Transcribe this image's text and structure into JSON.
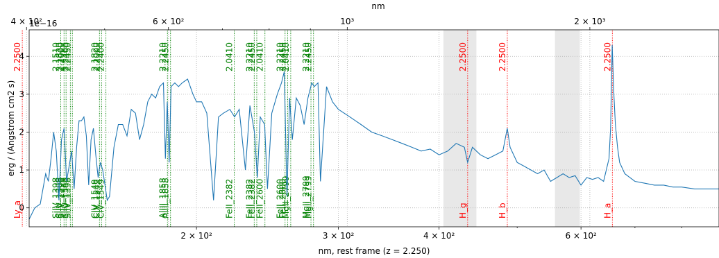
{
  "chart_data": {
    "type": "line",
    "colors": {
      "spectrum": "#1f77b4",
      "balmer": "#ff0000",
      "absorber": "#008000",
      "mask": "#e8e8e8"
    },
    "xlabel_bottom": "nm, rest frame (z = 2.250)",
    "xlabel_top": "nm",
    "ylabel": "erg / (Angstrom cm2 s)",
    "y_offset_label": "1e−16",
    "xscale": "log",
    "xlim_rest": [
      124,
      890
    ],
    "ylim": [
      -0.5,
      4.7
    ],
    "grid": true,
    "y_ticks": [
      {
        "v": 0,
        "label": "0"
      },
      {
        "v": 1,
        "label": "1"
      },
      {
        "v": 2,
        "label": "2"
      },
      {
        "v": 3,
        "label": "3"
      },
      {
        "v": 4,
        "label": "4"
      }
    ],
    "bottom_ticks": [
      {
        "v": 200,
        "label": "2 × 10²"
      },
      {
        "v": 300,
        "label": "3 × 10²"
      },
      {
        "v": 400,
        "label": "4 × 10²"
      },
      {
        "v": 600,
        "label": "6 × 10²"
      }
    ],
    "bottom_minor": [
      500,
      700,
      800
    ],
    "top_ticks": [
      {
        "v": 400,
        "label": "4 × 10²"
      },
      {
        "v": 600,
        "label": "6 × 10²"
      },
      {
        "v": 1000,
        "label": "10³"
      },
      {
        "v": 2000,
        "label": "2 × 10³"
      }
    ],
    "top_minor": [
      500,
      700,
      800,
      900
    ],
    "masked_regions_rest": [
      [
        405,
        445
      ],
      [
        557,
        598
      ]
    ],
    "balmer_lines": [
      {
        "name": "Ly_a",
        "z": "2.2500",
        "x_rest": 121.6
      },
      {
        "name": "H_g",
        "z": "2.2500",
        "x_rest": 434.0
      },
      {
        "name": "H_b",
        "z": "2.2500",
        "x_rest": 486.1
      },
      {
        "name": "H_a",
        "z": "2.2500",
        "x_rest": 656.3
      }
    ],
    "absorbers": [
      {
        "name": "SiIV_1398",
        "z": "2.1510",
        "x_rest": 135.7
      },
      {
        "name": "SiIV_1398",
        "z": "2.1820",
        "x_rest": 137.0
      },
      {
        "name": "SiIV_1398",
        "z": "2.2000",
        "x_rest": 137.8
      },
      {
        "name": "SiIV_1398",
        "z": "2.2400",
        "x_rest": 139.5
      },
      {
        "name": "SiIV_1398",
        "z": "2.2450",
        "x_rest": 140.3
      },
      {
        "name": "CIV_1549",
        "z": "2.1820",
        "x_rest": 151.6
      },
      {
        "name": "CIV_1549",
        "z": "2.2000",
        "x_rest": 152.5
      },
      {
        "name": "CIV_1549",
        "z": "2.2400",
        "x_rest": 154.4
      },
      {
        "name": "AlIII_1858",
        "z": "2.2210",
        "x_rest": 184.1
      },
      {
        "name": "AlIII_1858",
        "z": "2.2450",
        "x_rest": 185.7
      },
      {
        "name": "FeII_2382",
        "z": "2.0410",
        "x_rest": 222.8
      },
      {
        "name": "FeII_2600",
        "z": "2.0410",
        "x_rest": 243.2
      },
      {
        "name": "MgII_2799",
        "z": "2.0410",
        "x_rest": 261.8
      },
      {
        "name": "FeII_2382",
        "z": "2.2210",
        "x_rest": 235.9
      },
      {
        "name": "FeII_2382",
        "z": "2.2450",
        "x_rest": 237.6
      },
      {
        "name": "FeII_2600",
        "z": "2.2210",
        "x_rest": 257.6
      },
      {
        "name": "FeII_2600",
        "z": "2.2450",
        "x_rest": 259.5
      },
      {
        "name": "MgII_2799",
        "z": "2.2210",
        "x_rest": 277.4
      },
      {
        "name": "MgII_2799",
        "z": "2.2450",
        "x_rest": 279.4
      }
    ],
    "spectrum": {
      "name": "flux",
      "x_rest": [
        124,
        126,
        128,
        129,
        130,
        131,
        132,
        133,
        134,
        135,
        136,
        137,
        138,
        139,
        140,
        141,
        142,
        143,
        144,
        145,
        146,
        147,
        148,
        149,
        150,
        151,
        152,
        153,
        154,
        155,
        156,
        158,
        160,
        162,
        164,
        166,
        168,
        170,
        172,
        174,
        176,
        178,
        180,
        182,
        183,
        184,
        185,
        186,
        188,
        190,
        192,
        195,
        198,
        200,
        203,
        206,
        210,
        213,
        216,
        220,
        223,
        226,
        230,
        233,
        236,
        238,
        240,
        243,
        245,
        248,
        252,
        255,
        257,
        259,
        261,
        263,
        266,
        269,
        272,
        275,
        278,
        280,
        283,
        285,
        290,
        295,
        300,
        310,
        320,
        330,
        340,
        350,
        360,
        370,
        380,
        390,
        400,
        410,
        420,
        430,
        434,
        440,
        450,
        460,
        470,
        480,
        486,
        490,
        500,
        510,
        520,
        530,
        540,
        550,
        560,
        570,
        580,
        590,
        600,
        610,
        620,
        630,
        640,
        645,
        650,
        653,
        656,
        659,
        662,
        666,
        670,
        680,
        700,
        720,
        740,
        760,
        780,
        800,
        830,
        860,
        890
      ],
      "y": [
        -0.3,
        0.0,
        0.1,
        0.5,
        0.9,
        0.7,
        1.3,
        2.0,
        1.5,
        0.2,
        1.8,
        2.1,
        0.7,
        1.1,
        1.5,
        0.5,
        1.6,
        2.3,
        2.3,
        2.4,
        1.9,
        0.6,
        1.8,
        2.1,
        1.4,
        0.8,
        1.2,
        1.0,
        0.6,
        0.2,
        0.3,
        1.6,
        2.2,
        2.2,
        1.9,
        2.6,
        2.5,
        1.8,
        2.2,
        2.8,
        3.0,
        2.9,
        3.2,
        3.3,
        1.3,
        2.8,
        1.2,
        3.2,
        3.3,
        3.2,
        3.3,
        3.4,
        3.0,
        2.8,
        2.8,
        2.5,
        0.2,
        2.4,
        2.5,
        2.6,
        2.4,
        2.6,
        1.0,
        2.7,
        2.0,
        0.8,
        2.4,
        2.2,
        0.5,
        2.5,
        3.0,
        3.3,
        3.6,
        0.3,
        2.9,
        1.8,
        2.9,
        2.7,
        2.2,
        2.9,
        3.3,
        3.2,
        3.3,
        0.7,
        3.2,
        2.8,
        2.6,
        2.4,
        2.2,
        2.0,
        1.9,
        1.8,
        1.7,
        1.6,
        1.5,
        1.55,
        1.4,
        1.5,
        1.7,
        1.6,
        1.2,
        1.6,
        1.4,
        1.3,
        1.4,
        1.5,
        2.1,
        1.6,
        1.2,
        1.1,
        1.0,
        0.9,
        1.0,
        0.7,
        0.8,
        0.9,
        0.8,
        0.85,
        0.6,
        0.8,
        0.75,
        0.8,
        0.7,
        1.0,
        1.3,
        2.1,
        4.3,
        3.0,
        2.2,
        1.6,
        1.2,
        0.9,
        0.7,
        0.65,
        0.6,
        0.6,
        0.55,
        0.55,
        0.5,
        0.5,
        0.5
      ]
    }
  }
}
